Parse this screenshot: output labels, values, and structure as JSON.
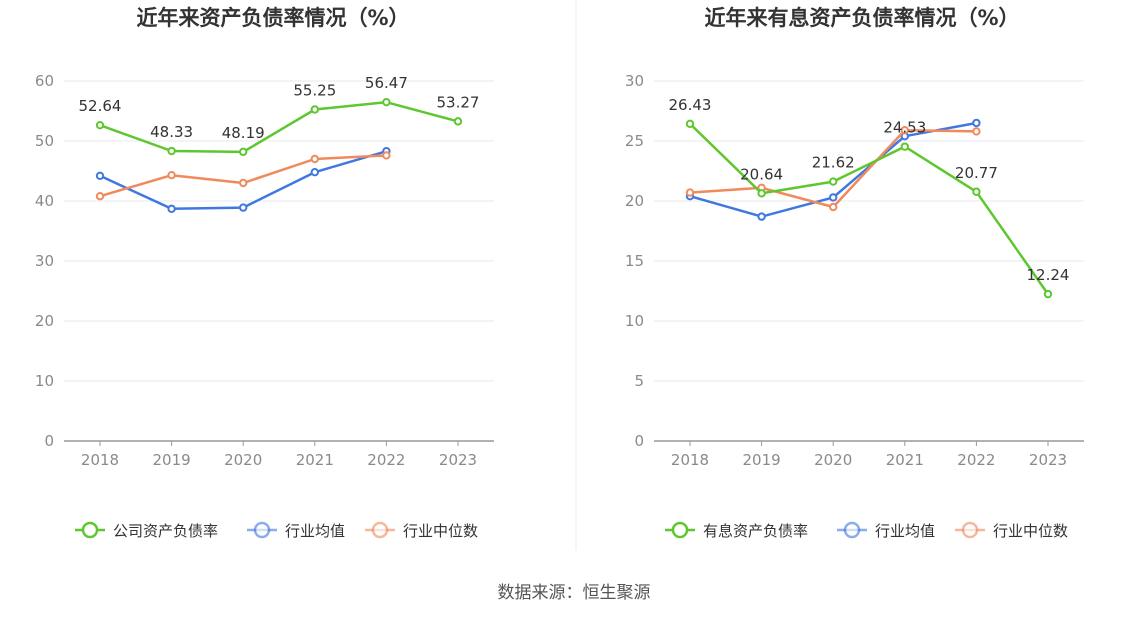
{
  "source_text": "数据来源：恒生聚源",
  "colors": {
    "green": "#5ec72f",
    "blue": "#3f78e0",
    "orange": "#f08a5d",
    "grid": "#e4e8f2",
    "axis": "#999999",
    "divider": "#ececec"
  },
  "chart_data": [
    {
      "type": "line",
      "title": "近年来资产负债率情况（%）",
      "categories": [
        "2018",
        "2019",
        "2020",
        "2021",
        "2022",
        "2023"
      ],
      "ylim": [
        0,
        60
      ],
      "yticks": [
        0,
        10,
        20,
        30,
        40,
        50,
        60
      ],
      "grid": true,
      "legend_position": "bottom-center",
      "series": [
        {
          "name": "公司资产负债率",
          "color": "#5ec72f",
          "values": [
            52.64,
            48.33,
            48.19,
            55.25,
            56.47,
            53.27
          ],
          "labels": [
            "52.64",
            "48.33",
            "48.19",
            "55.25",
            "56.47",
            "53.27"
          ]
        },
        {
          "name": "行业均值",
          "color": "#3f78e0",
          "values": [
            44.2,
            38.7,
            38.9,
            44.8,
            48.3,
            null
          ]
        },
        {
          "name": "行业中位数",
          "color": "#f08a5d",
          "values": [
            40.8,
            44.3,
            43.0,
            47.0,
            47.6,
            null
          ]
        }
      ]
    },
    {
      "type": "line",
      "title": "近年来有息资产负债率情况（%）",
      "categories": [
        "2018",
        "2019",
        "2020",
        "2021",
        "2022",
        "2023"
      ],
      "ylim": [
        0,
        30
      ],
      "yticks": [
        0,
        5,
        10,
        15,
        20,
        25,
        30
      ],
      "grid": true,
      "legend_position": "bottom-center",
      "series": [
        {
          "name": "有息资产负债率",
          "color": "#5ec72f",
          "values": [
            26.43,
            20.64,
            21.62,
            24.53,
            20.77,
            12.24
          ],
          "labels": [
            "26.43",
            "20.64",
            "21.62",
            "24.53",
            "20.77",
            "12.24"
          ]
        },
        {
          "name": "行业均值",
          "color": "#3f78e0",
          "values": [
            20.4,
            18.7,
            20.3,
            25.4,
            26.5,
            null
          ]
        },
        {
          "name": "行业中位数",
          "color": "#f08a5d",
          "values": [
            20.7,
            21.1,
            19.5,
            25.9,
            25.8,
            null
          ]
        }
      ]
    }
  ]
}
